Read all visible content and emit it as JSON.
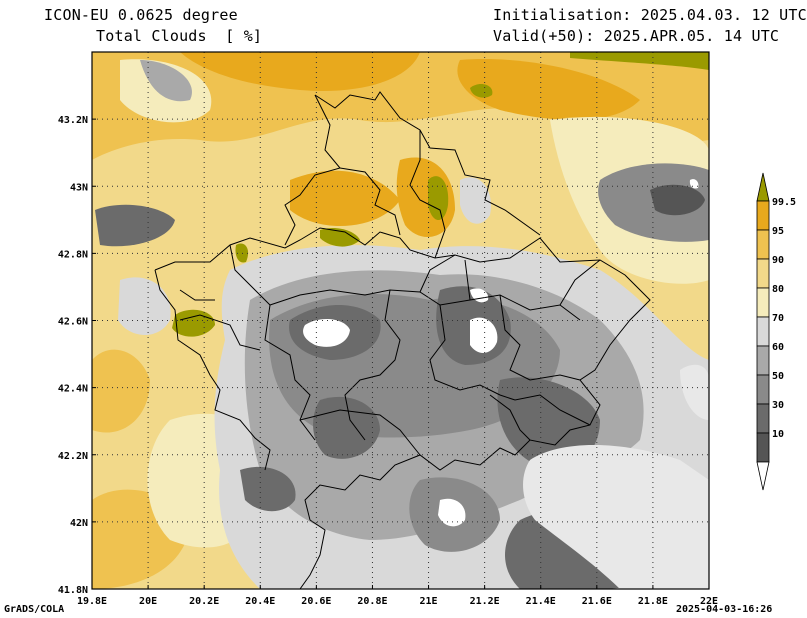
{
  "header": {
    "model": "ICON-EU 0.0625 degree",
    "variable": "Total Clouds  [ %]",
    "initialisation": "Initialisation: 2025.04.03. 12 UTC",
    "valid": "Valid(+50): 2025.APR.05. 14 UTC"
  },
  "footer": {
    "credit": "GrADS/COLA",
    "timestamp": "2025-04-03-16:26"
  },
  "map": {
    "lon_range": [
      19.8,
      22.0
    ],
    "lat_range": [
      41.8,
      43.4
    ],
    "lon_ticks": [
      "19.8E",
      "20E",
      "20.2E",
      "20.4E",
      "20.6E",
      "20.8E",
      "21E",
      "21.2E",
      "21.4E",
      "21.6E",
      "21.8E",
      "22E"
    ],
    "lat_ticks": [
      "41.8N",
      "42N",
      "42.2N",
      "42.4N",
      "42.6N",
      "42.8N",
      "43N",
      "43.2N"
    ],
    "gridlines": "dotted"
  },
  "legend": {
    "labels": [
      "99.5",
      "95",
      "90",
      "80",
      "70",
      "60",
      "50",
      "30",
      "10"
    ],
    "colors": [
      "#9a9a00",
      "#e8a91d",
      "#efc250",
      "#f2d98a",
      "#f5ecbc",
      "#d9d9d9",
      "#a9a9a9",
      "#8a8a8a",
      "#6b6b6b",
      "#555555"
    ],
    "bottom_color": "#ffffff"
  }
}
